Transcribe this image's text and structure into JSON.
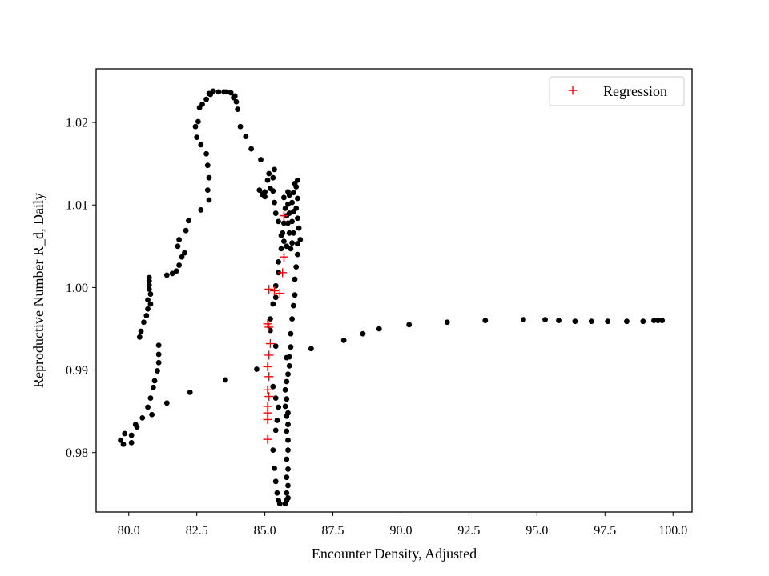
{
  "chart_data": {
    "type": "scatter",
    "xlabel": "Encounter Density, Adjusted",
    "ylabel": "Reproductive Number R_d, Daily",
    "xlim": [
      78.8,
      100.7
    ],
    "ylim": [
      0.9728,
      1.0265
    ],
    "xticks": [
      80.0,
      82.5,
      85.0,
      87.5,
      90.0,
      92.5,
      95.0,
      97.5,
      100.0
    ],
    "xtick_labels": [
      "80.0",
      "82.5",
      "85.0",
      "87.5",
      "90.0",
      "92.5",
      "95.0",
      "97.5",
      "100.0"
    ],
    "yticks": [
      0.98,
      0.99,
      1.0,
      1.01,
      1.02
    ],
    "ytick_labels": [
      "0.98",
      "0.99",
      "1.00",
      "1.01",
      "1.02"
    ],
    "grid": false,
    "legend": {
      "position": "top-right",
      "entries": [
        {
          "label": "Regression",
          "marker": "+",
          "color": "#ff0000"
        }
      ]
    },
    "series": [
      {
        "marker": "dot",
        "color": "#000000",
        "points": [
          [
            99.6,
            0.996
          ],
          [
            99.45,
            0.996
          ],
          [
            99.3,
            0.996
          ],
          [
            98.9,
            0.9959
          ],
          [
            98.3,
            0.9959
          ],
          [
            97.6,
            0.9959
          ],
          [
            97.0,
            0.9959
          ],
          [
            96.4,
            0.9959
          ],
          [
            95.8,
            0.996
          ],
          [
            95.3,
            0.9961
          ],
          [
            94.5,
            0.9961
          ],
          [
            93.1,
            0.996
          ],
          [
            91.7,
            0.9958
          ],
          [
            90.3,
            0.9955
          ],
          [
            89.2,
            0.995
          ],
          [
            88.6,
            0.9944
          ],
          [
            87.9,
            0.9936
          ],
          [
            86.7,
            0.9926
          ],
          [
            85.8,
            0.9915
          ],
          [
            85.4,
            0.9929
          ],
          [
            85.2,
            0.9948
          ],
          [
            85.2,
            0.9962
          ],
          [
            85.3,
            0.998
          ],
          [
            85.4,
            0.9988
          ],
          [
            85.4,
            1.0002
          ],
          [
            85.5,
            1.0018
          ],
          [
            85.5,
            1.0031
          ],
          [
            85.6,
            1.0047
          ],
          [
            85.6,
            1.0063
          ],
          [
            85.5,
            1.008
          ],
          [
            85.4,
            1.009
          ],
          [
            85.35,
            1.0103
          ],
          [
            85.3,
            1.0117
          ],
          [
            85.3,
            1.0133
          ],
          [
            85.35,
            1.0143
          ],
          [
            85.15,
            1.0138
          ],
          [
            85.2,
            1.012
          ],
          [
            85.1,
            1.013
          ],
          [
            85.0,
            1.0116
          ],
          [
            84.9,
            1.0113
          ],
          [
            84.8,
            1.0118
          ],
          [
            85.0,
            1.011
          ],
          [
            84.85,
            1.0155
          ],
          [
            84.5,
            1.0168
          ],
          [
            84.3,
            1.0183
          ],
          [
            84.1,
            1.0195
          ],
          [
            84.0,
            1.0216
          ],
          [
            83.95,
            1.0225
          ],
          [
            83.9,
            1.0232
          ],
          [
            83.85,
            1.023
          ],
          [
            83.75,
            1.0236
          ],
          [
            83.6,
            1.0237
          ],
          [
            83.5,
            1.0237
          ],
          [
            83.3,
            1.0237
          ],
          [
            83.1,
            1.0238
          ],
          [
            83.0,
            1.0234
          ],
          [
            82.95,
            1.0235
          ],
          [
            82.85,
            1.0228
          ],
          [
            82.7,
            1.0222
          ],
          [
            82.6,
            1.0218
          ],
          [
            82.55,
            1.0201
          ],
          [
            82.45,
            1.0195
          ],
          [
            82.5,
            1.0182
          ],
          [
            82.65,
            1.0173
          ],
          [
            82.85,
            1.0162
          ],
          [
            82.9,
            1.0148
          ],
          [
            82.95,
            1.0133
          ],
          [
            82.9,
            1.0118
          ],
          [
            82.95,
            1.0106
          ],
          [
            82.65,
            1.0094
          ],
          [
            82.2,
            1.0081
          ],
          [
            82.1,
            1.0069
          ],
          [
            81.85,
            1.0058
          ],
          [
            81.8,
            1.005
          ],
          [
            82.05,
            1.0042
          ],
          [
            81.95,
            1.0037
          ],
          [
            81.85,
            1.0027
          ],
          [
            81.75,
            1.002
          ],
          [
            81.6,
            1.0017
          ],
          [
            81.4,
            1.0015
          ],
          [
            80.75,
            1.0012
          ],
          [
            80.75,
            1.0008
          ],
          [
            80.75,
            1.0003
          ],
          [
            80.75,
            0.9998
          ],
          [
            80.8,
            0.9992
          ],
          [
            80.7,
            0.9985
          ],
          [
            80.8,
            0.998
          ],
          [
            80.7,
            0.9974
          ],
          [
            80.65,
            0.9966
          ],
          [
            80.55,
            0.9958
          ],
          [
            80.45,
            0.9947
          ],
          [
            80.4,
            0.994
          ],
          [
            81.1,
            0.993
          ],
          [
            81.1,
            0.9919
          ],
          [
            81.1,
            0.9909
          ],
          [
            81.05,
            0.9899
          ],
          [
            80.95,
            0.9887
          ],
          [
            80.9,
            0.9879
          ],
          [
            80.8,
            0.9866
          ],
          [
            80.7,
            0.9855
          ],
          [
            80.85,
            0.9846
          ],
          [
            80.5,
            0.9842
          ],
          [
            80.25,
            0.9834
          ],
          [
            80.3,
            0.9831
          ],
          [
            80.1,
            0.9821
          ],
          [
            79.85,
            0.9823
          ],
          [
            79.7,
            0.9815
          ],
          [
            79.8,
            0.981
          ],
          [
            80.1,
            0.9812
          ],
          [
            81.4,
            0.986
          ],
          [
            82.25,
            0.9873
          ],
          [
            83.55,
            0.9888
          ],
          [
            84.7,
            0.9901
          ],
          [
            85.3,
            0.988
          ],
          [
            85.4,
            0.9866
          ],
          [
            85.5,
            0.9855
          ],
          [
            85.45,
            0.9839
          ],
          [
            85.4,
            0.9827
          ],
          [
            85.3,
            0.9803
          ],
          [
            85.35,
            0.9781
          ],
          [
            85.4,
            0.9765
          ],
          [
            85.45,
            0.9751
          ],
          [
            85.5,
            0.9742
          ],
          [
            85.55,
            0.9738
          ],
          [
            85.75,
            0.9738
          ],
          [
            85.8,
            0.9742
          ],
          [
            85.85,
            0.9745
          ],
          [
            85.8,
            0.9751
          ],
          [
            85.85,
            0.976
          ],
          [
            85.8,
            0.977
          ],
          [
            85.85,
            0.978
          ],
          [
            85.8,
            0.9792
          ],
          [
            85.85,
            0.9803
          ],
          [
            85.85,
            0.9815
          ],
          [
            85.8,
            0.9826
          ],
          [
            85.85,
            0.9834
          ],
          [
            85.8,
            0.9844
          ],
          [
            85.85,
            0.9848
          ],
          [
            85.75,
            0.9856
          ],
          [
            85.8,
            0.9865
          ],
          [
            85.75,
            0.9876
          ],
          [
            85.8,
            0.9886
          ],
          [
            85.85,
            0.9895
          ],
          [
            85.9,
            0.9905
          ],
          [
            85.9,
            0.9916
          ],
          [
            85.95,
            0.9928
          ],
          [
            85.95,
            0.9944
          ],
          [
            86.0,
            0.9962
          ],
          [
            86.05,
            0.9978
          ],
          [
            86.1,
            0.9991
          ],
          [
            86.1,
            1.001
          ],
          [
            86.15,
            1.0025
          ],
          [
            86.2,
            1.004
          ],
          [
            86.2,
            1.0053
          ],
          [
            86.3,
            1.0058
          ],
          [
            86.25,
            1.0072
          ],
          [
            86.2,
            1.0084
          ],
          [
            86.15,
            1.0096
          ],
          [
            86.2,
            1.0108
          ],
          [
            86.15,
            1.0122
          ],
          [
            86.2,
            1.013
          ],
          [
            86.1,
            1.0126
          ],
          [
            86.05,
            1.0115
          ],
          [
            86.0,
            1.0103
          ],
          [
            86.05,
            1.0092
          ],
          [
            86.0,
            1.008
          ],
          [
            86.05,
            1.0066
          ],
          [
            86.0,
            1.0054
          ],
          [
            85.95,
            1.0047
          ],
          [
            85.9,
            1.0066
          ],
          [
            85.85,
            1.0078
          ],
          [
            85.9,
            1.009
          ],
          [
            85.85,
            1.0101
          ],
          [
            85.9,
            1.0112
          ],
          [
            85.85,
            1.0116
          ],
          [
            85.7,
            1.0109
          ],
          [
            85.75,
            1.0096
          ],
          [
            85.8,
            1.0087
          ],
          [
            85.7,
            1.0078
          ],
          [
            85.65,
            1.0066
          ],
          [
            85.7,
            1.0056
          ],
          [
            85.8,
            1.005
          ]
        ]
      },
      {
        "name": "Regression",
        "marker": "plus",
        "color": "#ff0000",
        "points": [
          [
            85.7,
            1.0087
          ],
          [
            85.7,
            1.0037
          ],
          [
            85.65,
            1.0018
          ],
          [
            85.15,
            0.9998
          ],
          [
            85.35,
            0.9996
          ],
          [
            85.55,
            0.9993
          ],
          [
            85.1,
            0.9956
          ],
          [
            85.15,
            0.9952
          ],
          [
            85.2,
            0.9932
          ],
          [
            85.15,
            0.9918
          ],
          [
            85.1,
            0.9904
          ],
          [
            85.15,
            0.9892
          ],
          [
            85.1,
            0.9876
          ],
          [
            85.15,
            0.9868
          ],
          [
            85.1,
            0.9856
          ],
          [
            85.1,
            0.9848
          ],
          [
            85.1,
            0.984
          ],
          [
            85.1,
            0.9816
          ]
        ]
      }
    ]
  }
}
